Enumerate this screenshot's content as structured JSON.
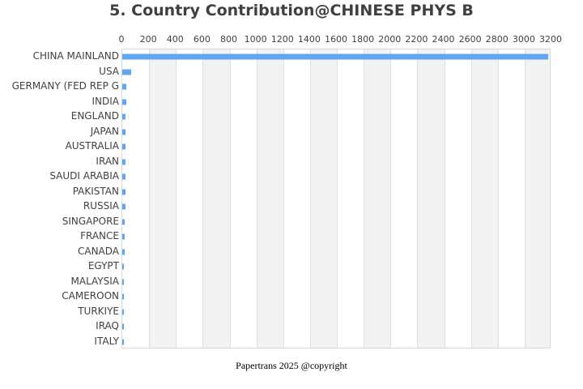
{
  "title": "5. Country Contribution@CHINESE PHYS B",
  "footer": "Papertrans 2025 @copyright",
  "colors": {
    "bar": "#5fa7f2",
    "title": "#404040",
    "band_gray": "#f2f2f2",
    "grid": "#e0e0e0"
  },
  "chart_data": {
    "type": "bar",
    "orientation": "horizontal",
    "title": "5. Country Contribution@CHINESE PHYS B",
    "xlabel": "",
    "ylabel": "",
    "xlim": [
      0,
      3200
    ],
    "x_ticks": [
      "0",
      "200",
      "400",
      "600",
      "800",
      "1000",
      "1200",
      "1400",
      "1600",
      "1800",
      "2000",
      "2200",
      "2400",
      "2600",
      "2800",
      "3000",
      "3200"
    ],
    "x_axis_position": "top",
    "grid": "alternating vertical bands",
    "legend": "none",
    "categories": [
      "CHINA MAINLAND",
      "USA",
      "GERMANY (FED REP G",
      "INDIA",
      "ENGLAND",
      "JAPAN",
      "AUSTRALIA",
      "IRAN",
      "SAUDI ARABIA",
      "PAKISTAN",
      "RUSSIA",
      "SINGAPORE",
      "FRANCE",
      "CANADA",
      "EGYPT",
      "MALAYSIA",
      "CAMEROON",
      "TURKIYE",
      "IRAQ",
      "ITALY"
    ],
    "values": [
      3175,
      68,
      33,
      28,
      24,
      24,
      22,
      22,
      22,
      22,
      22,
      16,
      16,
      16,
      10,
      10,
      10,
      10,
      10,
      10
    ]
  }
}
